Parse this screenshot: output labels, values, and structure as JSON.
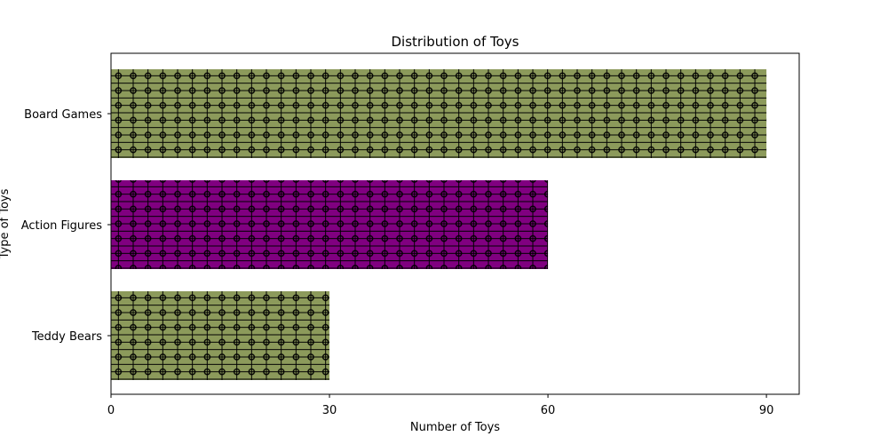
{
  "chart_data": {
    "type": "bar",
    "orientation": "horizontal",
    "title": "Distribution of Toys",
    "xlabel": "Number of Toys",
    "ylabel": "Type of Toys",
    "categories": [
      "Teddy Bears",
      "Action Figures",
      "Board Games"
    ],
    "values": [
      30,
      60,
      90
    ],
    "bar_colors": [
      "#8c9a5b",
      "#800080",
      "#8c9a5b"
    ],
    "hatch": "+o",
    "hatch_color": "#000000",
    "xlim": [
      0,
      94.5
    ],
    "xticks": [
      0,
      30,
      60,
      90
    ],
    "grid": false,
    "legend": "none"
  }
}
